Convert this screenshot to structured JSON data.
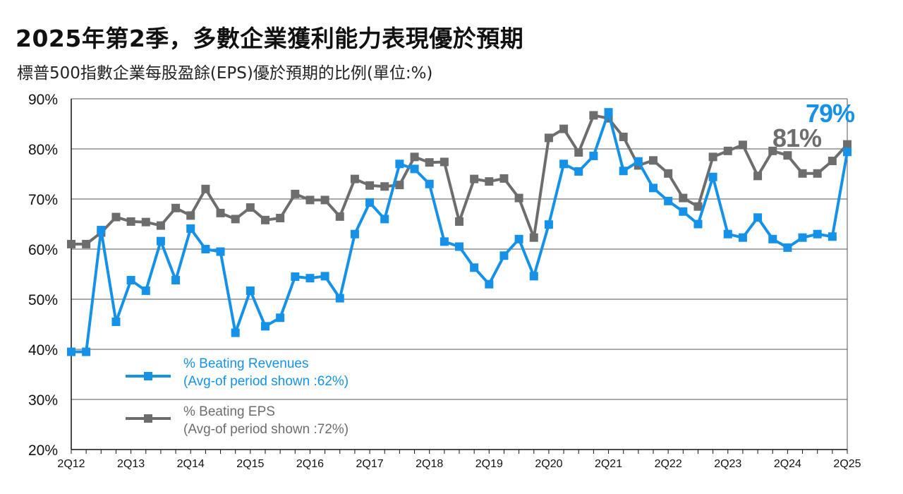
{
  "title": "2025年第2季，多數企業獲利能力表現優於預期",
  "subtitle": "標普500指數企業每股盈餘(EPS)優於預期的比例(單位:%)",
  "colors": {
    "revenues": "#1592e8",
    "eps": "#6d6d6d",
    "grid": "#555555"
  },
  "chart_data": {
    "type": "line",
    "y_ticks": [
      "90%",
      "80%",
      "70%",
      "60%",
      "50%",
      "40%",
      "30%",
      "20%"
    ],
    "ylim": [
      20,
      90
    ],
    "grid": true,
    "legend_position": "bottom-left",
    "x_tick_labels": [
      "2Q12",
      "2Q13",
      "2Q14",
      "2Q15",
      "2Q16",
      "2Q17",
      "2Q18",
      "2Q19",
      "2Q20",
      "2Q21",
      "2Q22",
      "2Q23",
      "2Q24",
      "2Q25"
    ],
    "x_tick_index": [
      0,
      4,
      8,
      12,
      16,
      20,
      24,
      28,
      32,
      36,
      40,
      44,
      48,
      52
    ],
    "x": [
      "2Q12",
      "3Q12",
      "4Q12",
      "1Q13",
      "2Q13",
      "3Q13",
      "4Q13",
      "1Q14",
      "2Q14",
      "3Q14",
      "4Q14",
      "1Q15",
      "2Q15",
      "3Q15",
      "4Q15",
      "1Q16",
      "2Q16",
      "3Q16",
      "4Q16",
      "1Q17",
      "2Q17",
      "3Q17",
      "4Q17",
      "1Q18",
      "2Q18",
      "3Q18",
      "4Q18",
      "1Q19",
      "2Q19",
      "3Q19",
      "4Q19",
      "1Q20",
      "2Q20",
      "3Q20",
      "4Q20",
      "1Q21",
      "2Q21",
      "3Q21",
      "4Q21",
      "1Q22",
      "2Q22",
      "3Q22",
      "4Q22",
      "1Q23",
      "2Q23",
      "3Q23",
      "4Q23",
      "1Q24",
      "2Q24",
      "3Q24",
      "4Q24",
      "1Q25",
      "2Q25"
    ],
    "series": [
      {
        "key": "revenues",
        "name_line1": "% Beating Revenues",
        "name_line2": "(Avg-of period shown :62%)",
        "end_label": "79%",
        "values": [
          39.5,
          39.5,
          63.8,
          45.5,
          53.8,
          51.7,
          61.6,
          53.8,
          64.1,
          60.0,
          59.5,
          43.3,
          51.7,
          44.6,
          46.3,
          54.5,
          54.2,
          54.6,
          50.2,
          63.0,
          69.3,
          66.0,
          77.0,
          76.0,
          73.0,
          61.5,
          60.5,
          56.3,
          53.0,
          58.7,
          62.0,
          54.6,
          64.9,
          77.0,
          75.5,
          78.6,
          87.3,
          75.6,
          77.5,
          72.2,
          69.6,
          67.5,
          65.0,
          74.4,
          63.0,
          62.3,
          66.3,
          62.0,
          60.3,
          62.3,
          63.0,
          62.5,
          79.4
        ]
      },
      {
        "key": "eps",
        "name_line1": "% Beating EPS",
        "name_line2": "(Avg-of period shown :72%)",
        "end_label": "81%",
        "values": [
          61.0,
          61.0,
          63.3,
          66.4,
          65.5,
          65.4,
          64.7,
          68.2,
          66.7,
          72.0,
          67.2,
          66.0,
          68.3,
          65.8,
          66.2,
          71.0,
          69.8,
          69.8,
          66.5,
          74.0,
          72.7,
          72.5,
          72.8,
          78.4,
          77.3,
          77.4,
          65.5,
          74.0,
          73.5,
          74.1,
          70.2,
          62.3,
          82.2,
          84.0,
          79.3,
          86.7,
          86.1,
          82.4,
          76.7,
          77.7,
          75.1,
          70.2,
          68.5,
          78.4,
          79.6,
          80.8,
          74.6,
          79.6,
          78.7,
          75.1,
          75.1,
          77.6,
          80.9
        ]
      }
    ]
  }
}
